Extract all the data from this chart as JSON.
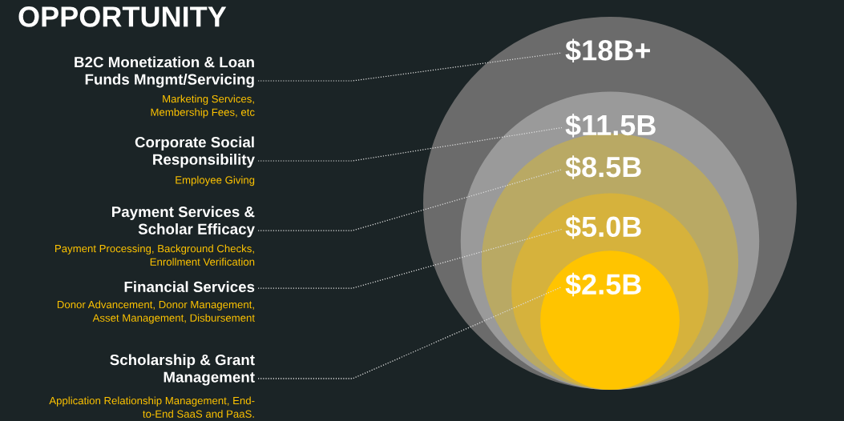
{
  "chart_data": {
    "type": "other",
    "title": "OPPORTUNITY",
    "categories": [
      "B2C Monetization & Loan\nFunds Mngmt/Servicing",
      "Corporate Social\nResponsibility",
      "Payment Services &\nScholar Efficacy",
      "Financial Services",
      "Scholarship & Grant\nManagement"
    ],
    "annotations": [
      "Marketing Services,\nMembership Fees, etc",
      "Employee Giving",
      "Payment Processing, Background Checks,\nEnrollment Verification",
      "Donor Advancement, Donor Management,\nAsset Management, Disbursement",
      "Application Relationship Management, End-\nto-End SaaS and PaaS."
    ],
    "values": [
      18,
      11.5,
      8.5,
      5.0,
      2.5
    ],
    "value_labels": [
      "$18B+",
      "$11.5B",
      "$8.5B",
      "$5.0B",
      "$2.5B"
    ],
    "colors": [
      "#6b6b6b",
      "#9a9a9a",
      "#b9a964",
      "#d6b23c",
      "#ffc400"
    ]
  }
}
